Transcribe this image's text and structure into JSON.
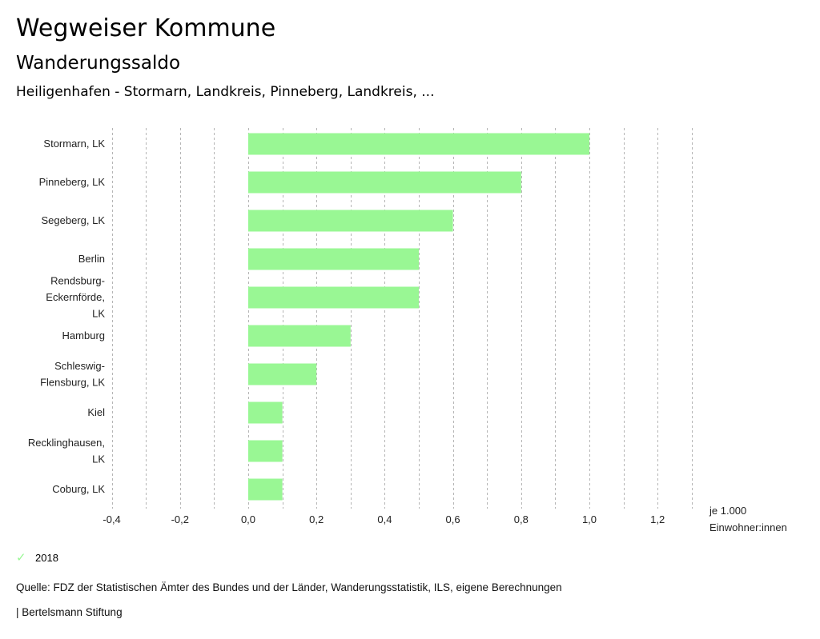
{
  "header": {
    "title": "Wegweiser Kommune",
    "subtitle": "Wanderungssaldo",
    "subsubtitle": "Heiligenhafen - Stormarn, Landkreis, Pinneberg, Landkreis, ..."
  },
  "chart_data": {
    "type": "bar",
    "orientation": "horizontal",
    "title": "Wanderungssaldo",
    "categories": [
      [
        "Stormarn, LK"
      ],
      [
        "Pinneberg, LK"
      ],
      [
        "Segeberg, LK"
      ],
      [
        "Berlin"
      ],
      [
        "Rendsburg-",
        "Eckernförde,",
        "LK"
      ],
      [
        "Hamburg"
      ],
      [
        "Schleswig-",
        "Flensburg, LK"
      ],
      [
        "Kiel"
      ],
      [
        "Recklinghausen,",
        "LK"
      ],
      [
        "Coburg, LK"
      ]
    ],
    "series": [
      {
        "name": "2018",
        "color": "#99f794",
        "values": [
          1.0,
          0.8,
          0.6,
          0.5,
          0.5,
          0.3,
          0.2,
          0.1,
          0.1,
          0.1
        ]
      }
    ],
    "xlim": [
      -0.4,
      1.3
    ],
    "xticks": [
      -0.4,
      -0.2,
      0.0,
      0.2,
      0.4,
      0.6,
      0.8,
      1.0,
      1.2
    ],
    "xtick_labels": [
      "-0,4",
      "-0,2",
      "0,0",
      "0,2",
      "0,4",
      "0,6",
      "0,8",
      "1,0",
      "1,2"
    ],
    "grid_step": 0.1,
    "grid": true,
    "xlabel": [
      "je 1.000",
      "Einwohner:innen"
    ],
    "legend_position": "bottom-left"
  },
  "legend": {
    "label": "2018",
    "icon": "check-icon"
  },
  "footer": {
    "source": "Quelle: FDZ der Statistischen Ämter des Bundes und der Länder, Wanderungsstatistik, ILS, eigene Berechnungen",
    "brand": "| Bertelsmann Stiftung"
  }
}
